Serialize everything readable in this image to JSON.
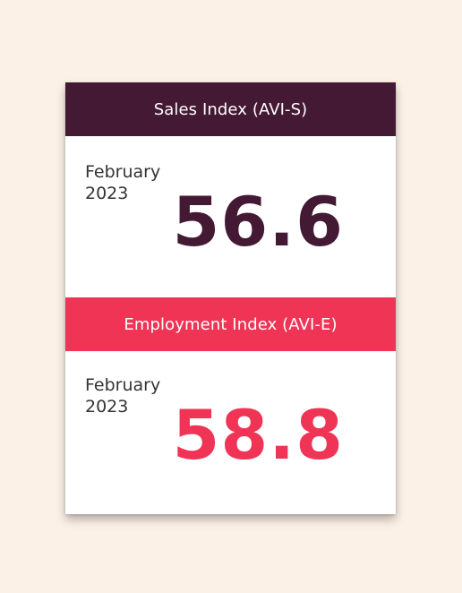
{
  "colors": {
    "background": "#fcf1e7",
    "sales_accent": "#441933",
    "employment_accent": "#ef3456"
  },
  "indices": [
    {
      "title": "Sales Index (AVI-S)",
      "period_month": "February",
      "period_year": "2023",
      "value": "56.6"
    },
    {
      "title": "Employment Index (AVI-E)",
      "period_month": "February",
      "period_year": "2023",
      "value": "58.8"
    }
  ]
}
